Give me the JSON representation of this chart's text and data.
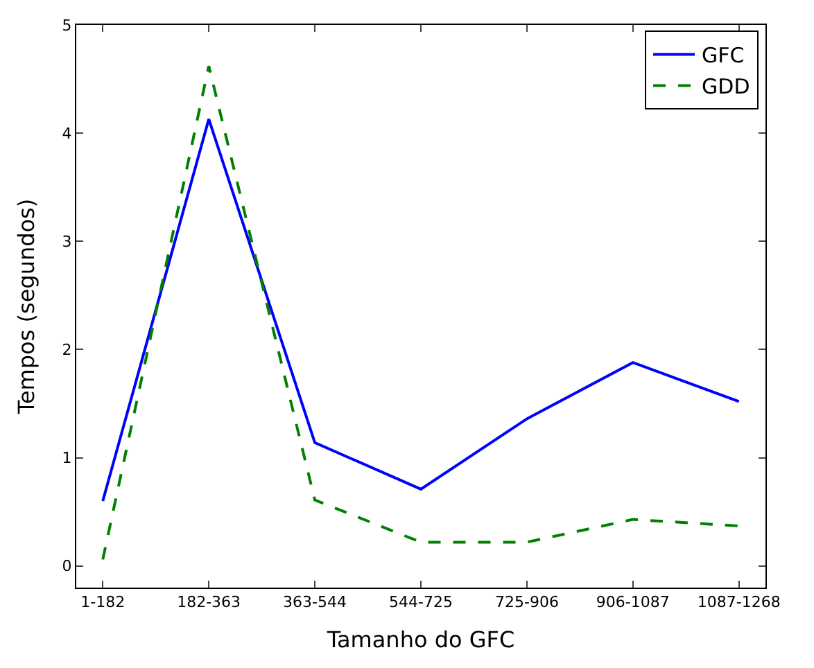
{
  "chart_data": {
    "type": "line",
    "xlabel": "Tamanho do GFC",
    "ylabel": "Tempos (segundos)",
    "categories": [
      "1-182",
      "182-363",
      "363-544",
      "544-725",
      "725-906",
      "906-1087",
      "1087-1268"
    ],
    "series": [
      {
        "name": "GFC",
        "color": "#0000ff",
        "line_style": "solid",
        "values": [
          0.6,
          4.13,
          1.14,
          0.71,
          1.36,
          1.88,
          1.52
        ]
      },
      {
        "name": "GDD",
        "color": "#008000",
        "line_style": "dashed",
        "values": [
          0.06,
          4.62,
          0.61,
          0.22,
          0.22,
          0.43,
          0.37
        ]
      }
    ],
    "ylim": [
      -0.2,
      5
    ],
    "yticks": [
      0,
      1,
      2,
      3,
      4,
      5
    ],
    "legend": "top right",
    "marker": "none"
  }
}
